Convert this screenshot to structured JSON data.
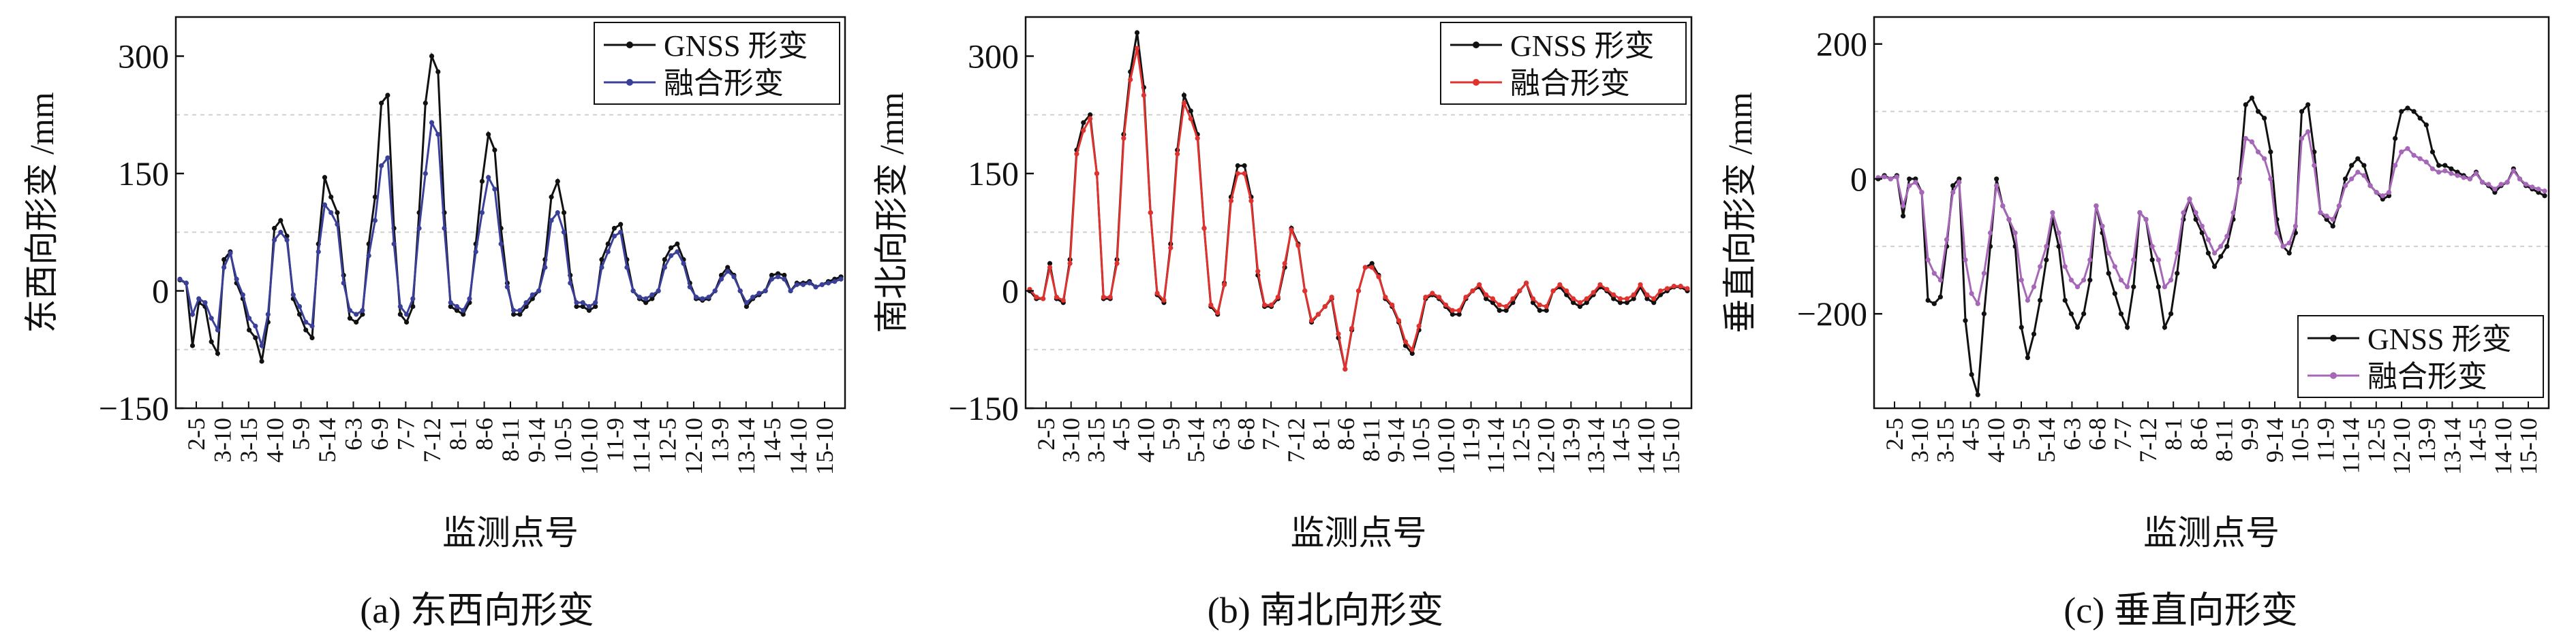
{
  "chart_data": [
    {
      "type": "line",
      "panel": "a",
      "caption": "(a) 东西向形变",
      "xlabel": "监测点号",
      "ylabel": "东西向形变 /mm",
      "ylim": [
        -150,
        350
      ],
      "yticks": [
        -150,
        0,
        150,
        300
      ],
      "ygrid": [
        -75,
        75,
        225
      ],
      "xticklabels": [
        "2-5",
        "3-10",
        "3-15",
        "4-10",
        "5-9",
        "5-14",
        "6-3",
        "6-9",
        "7-7",
        "7-12",
        "8-1",
        "8-6",
        "8-11",
        "9-14",
        "10-5",
        "10-10",
        "11-9",
        "11-14",
        "12-5",
        "12-10",
        "13-9",
        "13-14",
        "14-5",
        "14-10",
        "15-10"
      ],
      "legend_position": "top-right",
      "series": [
        {
          "name": "GNSS 形变",
          "color": "#111111",
          "values": [
            14,
            10,
            -70,
            -15,
            -20,
            -65,
            -80,
            40,
            50,
            10,
            -10,
            -50,
            -60,
            -90,
            -40,
            80,
            90,
            70,
            -10,
            -30,
            -50,
            -60,
            60,
            145,
            120,
            100,
            20,
            -35,
            -40,
            -30,
            60,
            120,
            240,
            250,
            80,
            -30,
            -40,
            -20,
            100,
            240,
            300,
            280,
            100,
            -20,
            -25,
            -30,
            -15,
            60,
            140,
            200,
            180,
            80,
            10,
            -30,
            -30,
            -20,
            -10,
            0,
            40,
            120,
            140,
            100,
            20,
            -20,
            -20,
            -25,
            -20,
            40,
            60,
            80,
            85,
            40,
            0,
            -10,
            -15,
            -10,
            0,
            40,
            55,
            60,
            40,
            10,
            -10,
            -12,
            -10,
            0,
            20,
            30,
            20,
            0,
            -20,
            -10,
            -5,
            0,
            20,
            22,
            20,
            0,
            10,
            10,
            12,
            5,
            8,
            12,
            15,
            18
          ]
        },
        {
          "name": "融合形变",
          "color": "#3a3f99",
          "values": [
            15,
            10,
            -30,
            -10,
            -15,
            -35,
            -50,
            30,
            48,
            15,
            -5,
            -35,
            -45,
            -70,
            -30,
            65,
            75,
            65,
            -5,
            -20,
            -40,
            -45,
            50,
            110,
            100,
            85,
            10,
            -25,
            -30,
            -25,
            45,
            90,
            160,
            170,
            60,
            -20,
            -30,
            -10,
            80,
            150,
            215,
            200,
            80,
            -15,
            -20,
            -25,
            -10,
            50,
            100,
            145,
            130,
            60,
            5,
            -25,
            -25,
            -15,
            -5,
            0,
            30,
            90,
            100,
            75,
            10,
            -15,
            -15,
            -20,
            -15,
            30,
            50,
            70,
            75,
            30,
            0,
            -8,
            -10,
            -5,
            0,
            30,
            45,
            50,
            35,
            5,
            -8,
            -10,
            -8,
            0,
            15,
            25,
            18,
            0,
            -15,
            -8,
            -3,
            0,
            15,
            18,
            15,
            0,
            8,
            8,
            10,
            5,
            8,
            10,
            12,
            15
          ]
        }
      ]
    },
    {
      "type": "line",
      "panel": "b",
      "caption": "(b) 南北向形变",
      "xlabel": "监测点号",
      "ylabel": "南北向形变 /mm",
      "ylim": [
        -150,
        350
      ],
      "yticks": [
        -150,
        0,
        150,
        300
      ],
      "ygrid": [
        -75,
        75,
        225
      ],
      "xticklabels": [
        "2-5",
        "3-10",
        "3-15",
        "4-5",
        "4-10",
        "5-9",
        "5-14",
        "6-3",
        "6-8",
        "7-7",
        "7-12",
        "8-1",
        "8-6",
        "8-11",
        "9-14",
        "10-5",
        "10-10",
        "11-9",
        "11-14",
        "12-5",
        "12-10",
        "13-9",
        "13-14",
        "14-5",
        "14-10",
        "15-10"
      ],
      "legend_position": "top-right",
      "series": [
        {
          "name": "GNSS 形变",
          "color": "#111111",
          "values": [
            0,
            -10,
            -10,
            35,
            -10,
            -15,
            40,
            180,
            215,
            225,
            150,
            -10,
            -10,
            40,
            200,
            280,
            330,
            260,
            100,
            -5,
            -15,
            60,
            180,
            250,
            230,
            200,
            80,
            -20,
            -30,
            10,
            120,
            160,
            160,
            120,
            20,
            -20,
            -20,
            -10,
            30,
            80,
            60,
            0,
            -40,
            -30,
            -20,
            -10,
            -60,
            -100,
            -50,
            0,
            30,
            35,
            20,
            -10,
            -20,
            -40,
            -70,
            -80,
            -50,
            -10,
            -5,
            -10,
            -20,
            -30,
            -30,
            -10,
            0,
            5,
            -10,
            -15,
            -25,
            -25,
            -15,
            0,
            10,
            -15,
            -25,
            -25,
            0,
            5,
            -5,
            -15,
            -20,
            -15,
            -5,
            5,
            0,
            -10,
            -15,
            -15,
            -10,
            5,
            -10,
            -15,
            -5,
            0,
            5,
            5,
            0
          ]
        },
        {
          "name": "融合形变",
          "color": "#e0322e",
          "values": [
            2,
            -8,
            -10,
            30,
            -8,
            -12,
            35,
            175,
            205,
            220,
            150,
            -8,
            -8,
            35,
            195,
            270,
            310,
            250,
            100,
            -3,
            -12,
            55,
            175,
            240,
            220,
            195,
            80,
            -18,
            -28,
            8,
            115,
            150,
            150,
            115,
            25,
            -18,
            -18,
            -8,
            35,
            78,
            58,
            0,
            -38,
            -30,
            -20,
            -8,
            -55,
            -100,
            -48,
            0,
            30,
            30,
            18,
            -8,
            -18,
            -38,
            -65,
            -75,
            -45,
            -8,
            -3,
            -8,
            -18,
            -25,
            -25,
            -8,
            0,
            8,
            -5,
            -10,
            -18,
            -20,
            -10,
            0,
            10,
            -10,
            -18,
            -20,
            0,
            8,
            0,
            -10,
            -15,
            -10,
            -2,
            8,
            2,
            -5,
            -10,
            -10,
            -5,
            8,
            -5,
            -10,
            0,
            3,
            6,
            6,
            3
          ]
        }
      ]
    },
    {
      "type": "line",
      "panel": "c",
      "caption": "(c) 垂直向形变",
      "xlabel": "监测点号",
      "ylabel": "垂直向形变 /mm",
      "ylim": [
        -340,
        240
      ],
      "yticks": [
        -200,
        0,
        200
      ],
      "ygrid": [
        -100,
        100
      ],
      "xticklabels": [
        "2-5",
        "3-10",
        "3-15",
        "4-5",
        "4-10",
        "5-9",
        "5-14",
        "6-3",
        "6-8",
        "7-7",
        "7-12",
        "8-1",
        "8-6",
        "8-11",
        "9-9",
        "9-14",
        "10-5",
        "11-9",
        "11-14",
        "12-5",
        "12-10",
        "13-9",
        "13-14",
        "14-5",
        "14-10",
        "15-10"
      ],
      "legend_position": "bottom-right",
      "series": [
        {
          "name": "GNSS 形变",
          "color": "#111111",
          "values": [
            0,
            5,
            0,
            5,
            -55,
            0,
            0,
            -20,
            -180,
            -185,
            -175,
            -100,
            -10,
            0,
            -210,
            -290,
            -320,
            -200,
            -100,
            0,
            -40,
            -60,
            -100,
            -220,
            -265,
            -230,
            -180,
            -120,
            -60,
            -100,
            -180,
            -200,
            -220,
            -200,
            -150,
            -40,
            -80,
            -140,
            -170,
            -200,
            -220,
            -160,
            -50,
            -60,
            -120,
            -160,
            -220,
            -200,
            -140,
            -60,
            -30,
            -60,
            -80,
            -110,
            -130,
            -115,
            -100,
            -60,
            0,
            110,
            120,
            100,
            90,
            40,
            -60,
            -100,
            -110,
            -80,
            100,
            110,
            40,
            -50,
            -60,
            -70,
            -40,
            0,
            20,
            30,
            20,
            -10,
            -20,
            -30,
            -25,
            60,
            100,
            105,
            100,
            90,
            80,
            40,
            20,
            20,
            15,
            10,
            5,
            0,
            10,
            -5,
            -10,
            -20,
            -10,
            -5,
            15,
            0,
            -10,
            -15,
            -20,
            -25
          ]
        },
        {
          "name": "融合形变",
          "color": "#a667b8",
          "values": [
            2,
            3,
            0,
            3,
            -40,
            -10,
            -5,
            -20,
            -120,
            -140,
            -150,
            -90,
            -20,
            -5,
            -120,
            -170,
            -185,
            -140,
            -80,
            -10,
            -40,
            -60,
            -80,
            -150,
            -180,
            -160,
            -130,
            -100,
            -50,
            -80,
            -130,
            -150,
            -160,
            -150,
            -120,
            -40,
            -70,
            -110,
            -130,
            -150,
            -160,
            -120,
            -50,
            -60,
            -100,
            -120,
            -160,
            -150,
            -110,
            -50,
            -30,
            -50,
            -70,
            -90,
            -110,
            -100,
            -85,
            -50,
            -5,
            60,
            55,
            40,
            30,
            0,
            -80,
            -100,
            -95,
            -70,
            60,
            70,
            20,
            -50,
            -55,
            -60,
            -40,
            -10,
            0,
            10,
            5,
            -10,
            -20,
            -25,
            -20,
            20,
            40,
            45,
            35,
            30,
            25,
            15,
            10,
            12,
            8,
            5,
            2,
            0,
            8,
            -5,
            -8,
            -15,
            -8,
            -5,
            12,
            0,
            -8,
            -12,
            -15,
            -18
          ]
        }
      ]
    }
  ]
}
